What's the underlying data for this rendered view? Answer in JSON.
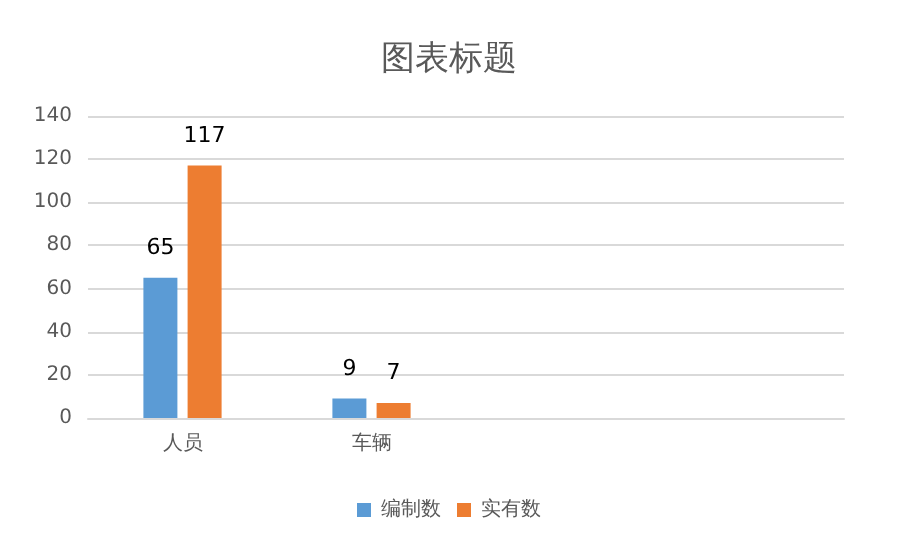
{
  "chart_data": {
    "type": "bar",
    "title": "图表标题",
    "categories": [
      "人员",
      "车辆",
      null,
      null
    ],
    "series": [
      {
        "name": "编制数",
        "color": "#5b9bd5",
        "values": [
          65,
          9,
          null,
          null
        ]
      },
      {
        "name": "实有数",
        "color": "#ed7d31",
        "values": [
          117,
          7,
          null,
          null
        ]
      }
    ],
    "ylim": [
      0,
      140
    ],
    "yticks": [
      0,
      20,
      40,
      60,
      80,
      100,
      120,
      140
    ],
    "grid": "y",
    "legend": "bottom",
    "data_labels": true
  }
}
